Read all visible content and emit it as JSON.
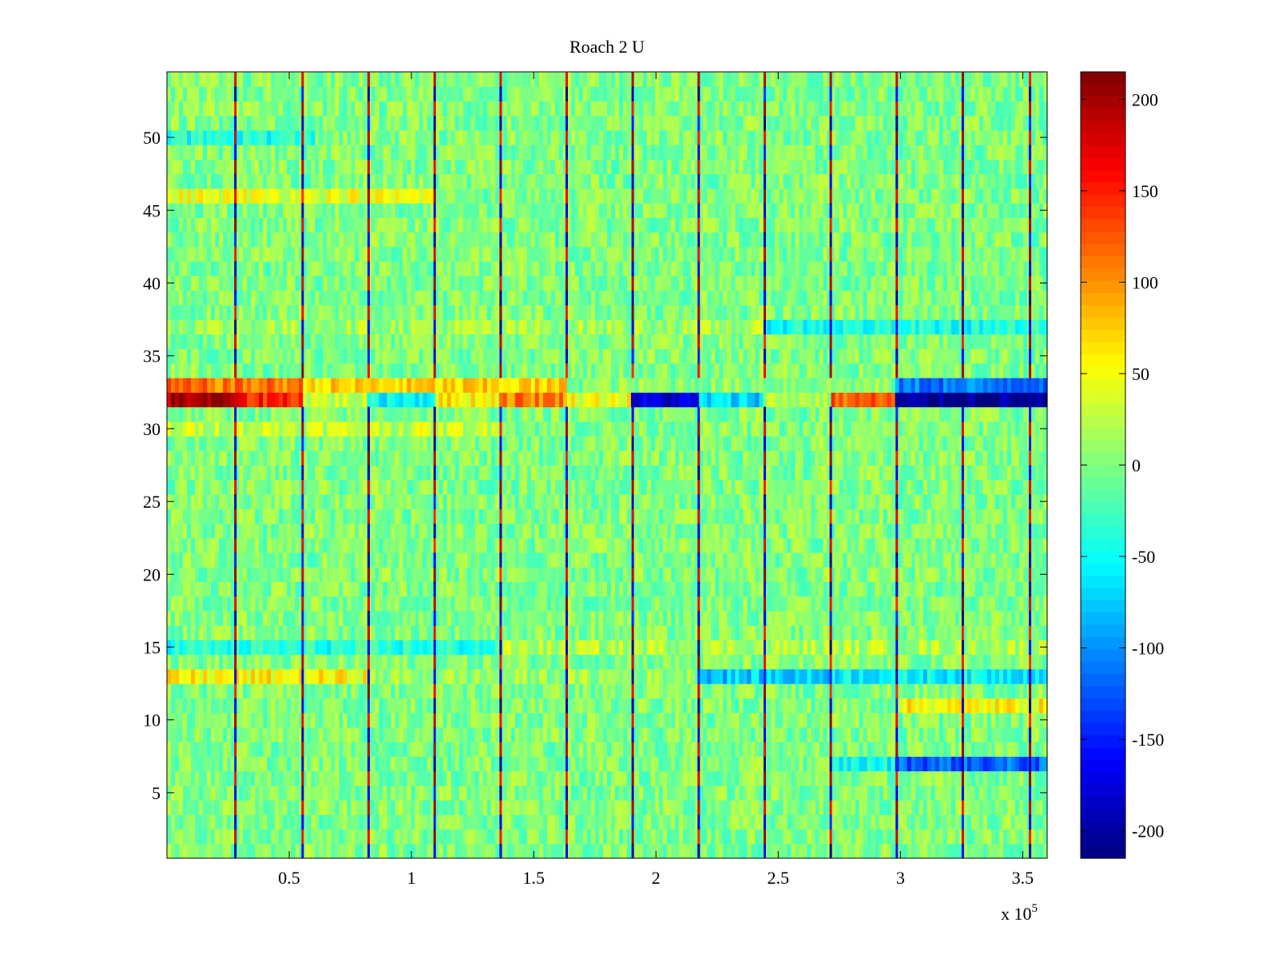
{
  "chart_data": {
    "type": "heatmap",
    "title": "Roach 2 U",
    "xlabel": "",
    "ylabel": "",
    "x_exponent_label": "x 10",
    "x_exponent_power": "5",
    "xlim": [
      0,
      3.6
    ],
    "ylim": [
      0.5,
      54.5
    ],
    "rows": 54,
    "grid": false,
    "x_ticks": [
      {
        "value": 0.5,
        "label": "0.5"
      },
      {
        "value": 1,
        "label": "1"
      },
      {
        "value": 1.5,
        "label": "1.5"
      },
      {
        "value": 2,
        "label": "2"
      },
      {
        "value": 2.5,
        "label": "2.5"
      },
      {
        "value": 3,
        "label": "3"
      },
      {
        "value": 3.5,
        "label": "3.5"
      }
    ],
    "y_ticks": [
      {
        "value": 5,
        "label": "5"
      },
      {
        "value": 10,
        "label": "10"
      },
      {
        "value": 15,
        "label": "15"
      },
      {
        "value": 20,
        "label": "20"
      },
      {
        "value": 25,
        "label": "25"
      },
      {
        "value": 30,
        "label": "30"
      },
      {
        "value": 35,
        "label": "35"
      },
      {
        "value": 40,
        "label": "40"
      },
      {
        "value": 45,
        "label": "45"
      },
      {
        "value": 50,
        "label": "50"
      }
    ],
    "colorbar": {
      "colormap": "jet",
      "min": -215,
      "max": 215,
      "ticks": [
        {
          "value": 200,
          "label": "200"
        },
        {
          "value": 150,
          "label": "150"
        },
        {
          "value": 100,
          "label": "100"
        },
        {
          "value": 50,
          "label": "50"
        },
        {
          "value": 0,
          "label": "0"
        },
        {
          "value": -50,
          "label": "-50"
        },
        {
          "value": -100,
          "label": "-100"
        },
        {
          "value": -150,
          "label": "-150"
        },
        {
          "value": -200,
          "label": "-200"
        }
      ]
    },
    "periodic_spikes_x": [
      0.28,
      0.555,
      0.825,
      1.095,
      1.365,
      1.635,
      1.905,
      2.175,
      2.445,
      2.715,
      2.985,
      3.255,
      3.53
    ],
    "row_segments": [
      {
        "row": 32,
        "segments": [
          {
            "x0": 0,
            "x1": 0.28,
            "value": 200
          },
          {
            "x0": 0.28,
            "x1": 0.555,
            "value": 150
          },
          {
            "x0": 0.555,
            "x1": 0.825,
            "value": 30
          },
          {
            "x0": 0.825,
            "x1": 1.095,
            "value": -50
          },
          {
            "x0": 1.095,
            "x1": 1.365,
            "value": 60
          },
          {
            "x0": 1.365,
            "x1": 1.635,
            "value": 110
          },
          {
            "x0": 1.635,
            "x1": 1.905,
            "value": 50
          },
          {
            "x0": 1.905,
            "x1": 2.175,
            "value": -180
          },
          {
            "x0": 2.175,
            "x1": 2.445,
            "value": -70
          },
          {
            "x0": 2.445,
            "x1": 2.715,
            "value": 20
          },
          {
            "x0": 2.715,
            "x1": 2.985,
            "value": 120
          },
          {
            "x0": 2.985,
            "x1": 3.6,
            "value": -210
          }
        ]
      },
      {
        "row": 33,
        "segments": [
          {
            "x0": 0,
            "x1": 0.555,
            "value": 110
          },
          {
            "x0": 0.555,
            "x1": 1.635,
            "value": 70
          },
          {
            "x0": 1.635,
            "x1": 2.985,
            "value": 5
          },
          {
            "x0": 2.985,
            "x1": 3.6,
            "value": -110
          }
        ]
      },
      {
        "row": 37,
        "segments": [
          {
            "x0": 0,
            "x1": 2.445,
            "value": 15
          },
          {
            "x0": 2.445,
            "x1": 3.6,
            "value": -45
          }
        ]
      },
      {
        "row": 11,
        "segments": [
          {
            "x0": 0,
            "x1": 2.985,
            "value": 0
          },
          {
            "x0": 2.985,
            "x1": 3.6,
            "value": 55
          }
        ]
      },
      {
        "row": 13,
        "segments": [
          {
            "x0": 0,
            "x1": 0.825,
            "value": 55
          },
          {
            "x0": 0.825,
            "x1": 2.175,
            "value": 10
          },
          {
            "x0": 2.175,
            "x1": 2.715,
            "value": -75
          },
          {
            "x0": 2.715,
            "x1": 3.6,
            "value": -55
          }
        ]
      },
      {
        "row": 7,
        "segments": [
          {
            "x0": 0,
            "x1": 2.715,
            "value": 0
          },
          {
            "x0": 2.715,
            "x1": 2.985,
            "value": -50
          },
          {
            "x0": 2.985,
            "x1": 3.6,
            "value": -120
          }
        ]
      },
      {
        "row": 15,
        "segments": [
          {
            "x0": 0,
            "x1": 1.365,
            "value": -40
          },
          {
            "x0": 1.365,
            "x1": 3.6,
            "value": 20
          }
        ]
      },
      {
        "row": 46,
        "segments": [
          {
            "x0": 0,
            "x1": 1.1,
            "value": 45
          },
          {
            "x0": 1.1,
            "x1": 3.6,
            "value": 0
          }
        ]
      },
      {
        "row": 50,
        "segments": [
          {
            "x0": 0,
            "x1": 0.6,
            "value": -40
          },
          {
            "x0": 0.6,
            "x1": 3.6,
            "value": 0
          }
        ]
      },
      {
        "row": 30,
        "segments": [
          {
            "x0": 0,
            "x1": 1.4,
            "value": 30
          },
          {
            "x0": 1.4,
            "x1": 3.6,
            "value": 0
          }
        ]
      }
    ]
  },
  "colors": {
    "background": "#ffffff",
    "axis": "#000000"
  }
}
